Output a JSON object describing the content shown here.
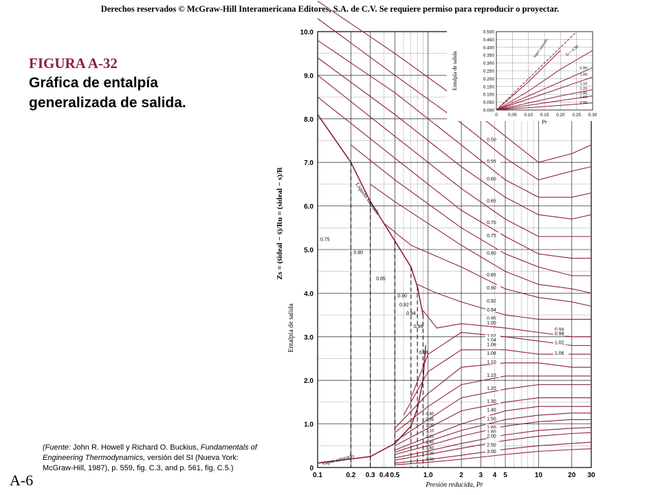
{
  "copyright": "Derechos reservados © McGraw-Hill Interamericana Editores, S.A. de C.V. Se requiere permiso para reproducir o proyectar.",
  "figure": {
    "number": "FIGURA A-32",
    "title": "Gráfica de entalpía generalizada de salida.",
    "page": "A-6",
    "source_prefix": "(Fuente:",
    "source_authors": "John R. Howell y Richard O. Buckius,",
    "source_book": "Fundamentals of Engineering Thermodynamics,",
    "source_rest": "versión del SI (Nueva York: McGraw-Hill, 1987), p. 559, fig. C.3, and",
    "source_rest2": "p. 561, fig. C.5.)"
  },
  "colors": {
    "curve": "#8e1f38",
    "grid": "#000000",
    "dashed": "#000000"
  },
  "chart_data": [
    {
      "type": "line",
      "xlabel": "Presión reducida, Pr",
      "ylabel": "Entalpía de salida",
      "ylabel_formula": "Zs = (s̄ideal − s̄)/Ru = (sideal − s)/R",
      "x_scale": "log",
      "xlim": [
        0.1,
        30
      ],
      "ylim": [
        0,
        10
      ],
      "xticks": [
        "0.1",
        "0.2",
        "0.3",
        "0.4",
        "0.5",
        "1.0",
        "2",
        "3",
        "4",
        "5",
        "10",
        "20",
        "30"
      ],
      "yticks": [
        "0",
        "1.0",
        "2.0",
        "3.0",
        "4.0",
        "5.0",
        "6.0",
        "7.0",
        "8.0",
        "9.0",
        "10.0"
      ],
      "series_label": "Tr",
      "annotations": [
        "Líquido saturado",
        "Vapor saturado"
      ],
      "right_labels": [
        "0.50",
        "0.55",
        "0.60",
        "0.65",
        "0.70",
        "0.75",
        "0.80",
        "0.85",
        "0.90",
        "0.92",
        "0.94",
        "0.95",
        "1.00",
        "1.02",
        "1.04",
        "1.06",
        "1.08",
        "1.10",
        "1.15",
        "1.20",
        "1.30",
        "1.40",
        "1.50",
        "1.60",
        "1.80",
        "2.00",
        "2.50",
        "3.00"
      ],
      "inner_labels": [
        "0.94",
        "0.98",
        "1.02",
        "1.06"
      ],
      "liquid_line_labels": [
        "0.75",
        "0.80",
        "0.85",
        "0.90",
        "0.92",
        "0.94",
        "0.96",
        "0.98"
      ],
      "vapor_line_labels": [
        "0.90",
        "0.95",
        "1.00",
        "1.10",
        "1.20",
        "1.40",
        "1.60",
        "2.00",
        "3.00"
      ],
      "saturated_liquid": {
        "x": [
          0.1,
          0.2,
          0.3,
          0.5,
          0.7,
          0.8,
          0.9
        ],
        "y": [
          8.1,
          7.0,
          6.1,
          5.2,
          4.6,
          4.15,
          3.5
        ]
      },
      "saturated_vapor": {
        "x": [
          0.1,
          0.3,
          0.5,
          0.7,
          0.8,
          0.9,
          0.95
        ],
        "y": [
          0.1,
          0.25,
          0.55,
          0.95,
          1.35,
          2.0,
          2.8
        ]
      },
      "series": [
        {
          "name": "0.50",
          "x": [
            0.1,
            0.5,
            2,
            5,
            10,
            20,
            30
          ],
          "y": [
            10.7,
            9.5,
            8.4,
            7.6,
            7.0,
            7.2,
            7.4
          ]
        },
        {
          "name": "0.55",
          "x": [
            0.1,
            0.5,
            2,
            5,
            10,
            20,
            30
          ],
          "y": [
            10.3,
            9.0,
            7.9,
            7.1,
            6.6,
            6.8,
            6.9
          ]
        },
        {
          "name": "0.60",
          "x": [
            0.1,
            0.5,
            2,
            5,
            10,
            20,
            30
          ],
          "y": [
            9.8,
            8.6,
            7.4,
            6.6,
            6.2,
            6.2,
            6.3
          ]
        },
        {
          "name": "0.65",
          "x": [
            0.1,
            0.5,
            2,
            5,
            10,
            20,
            30
          ],
          "y": [
            9.4,
            8.1,
            6.9,
            6.2,
            5.8,
            5.7,
            5.8
          ]
        },
        {
          "name": "0.70",
          "x": [
            0.1,
            0.5,
            2,
            5,
            10,
            20,
            30
          ],
          "y": [
            9.0,
            7.6,
            6.4,
            5.7,
            5.3,
            5.3,
            5.3
          ]
        },
        {
          "name": "0.75",
          "x": [
            0.1,
            0.5,
            2,
            5,
            10,
            20,
            30
          ],
          "y": [
            8.5,
            7.1,
            5.9,
            5.3,
            4.9,
            4.8,
            4.8
          ]
        },
        {
          "name": "0.80",
          "x": [
            0.2,
            0.5,
            2,
            5,
            10,
            20,
            30
          ],
          "y": [
            7.4,
            6.6,
            5.5,
            4.9,
            4.6,
            4.4,
            4.4
          ]
        },
        {
          "name": "0.85",
          "x": [
            0.3,
            0.5,
            2,
            5,
            10,
            20,
            30
          ],
          "y": [
            6.5,
            6.1,
            5.1,
            4.5,
            4.2,
            4.1,
            4.0
          ]
        },
        {
          "name": "0.90",
          "x": [
            0.4,
            0.7,
            2,
            5,
            10,
            20,
            30
          ],
          "y": [
            5.6,
            5.1,
            4.6,
            4.1,
            3.9,
            3.8,
            3.7
          ]
        },
        {
          "name": "0.95",
          "x": [
            0.8,
            1.2,
            2,
            5,
            10,
            20,
            30
          ],
          "y": [
            4.2,
            4.0,
            3.8,
            3.5,
            3.4,
            3.4,
            3.4
          ]
        },
        {
          "name": "1.00",
          "x": [
            0.9,
            1.2,
            2,
            5,
            10,
            20,
            30
          ],
          "y": [
            3.6,
            3.2,
            3.3,
            3.2,
            3.1,
            3.0,
            3.0
          ]
        },
        {
          "name": "1.02",
          "x": [
            0.7,
            1.0,
            2,
            5,
            10,
            20,
            30
          ],
          "y": [
            1.6,
            2.6,
            3.1,
            3.0,
            2.9,
            2.8,
            2.8
          ]
        },
        {
          "name": "1.06",
          "x": [
            0.6,
            1.0,
            2,
            5,
            10,
            20,
            30
          ],
          "y": [
            1.2,
            2.2,
            2.7,
            2.7,
            2.6,
            2.6,
            2.6
          ]
        },
        {
          "name": "1.10",
          "x": [
            0.5,
            1.0,
            2,
            5,
            10,
            20,
            30
          ],
          "y": [
            0.9,
            1.7,
            2.3,
            2.4,
            2.4,
            2.3,
            2.3
          ]
        },
        {
          "name": "1.15",
          "x": [
            0.5,
            1.0,
            2,
            5,
            10,
            20,
            30
          ],
          "y": [
            0.8,
            1.4,
            1.9,
            2.1,
            2.1,
            2.1,
            2.1
          ]
        },
        {
          "name": "1.20",
          "x": [
            0.5,
            1.0,
            2,
            5,
            10,
            20,
            30
          ],
          "y": [
            0.6,
            1.1,
            1.6,
            1.8,
            1.9,
            1.9,
            1.9
          ]
        },
        {
          "name": "1.30",
          "x": [
            0.5,
            1.0,
            2,
            5,
            10,
            20,
            30
          ],
          "y": [
            0.5,
            0.9,
            1.3,
            1.5,
            1.6,
            1.6,
            1.6
          ]
        },
        {
          "name": "1.40",
          "x": [
            0.5,
            1.0,
            2,
            5,
            10,
            20,
            30
          ],
          "y": [
            0.4,
            0.7,
            1.0,
            1.3,
            1.4,
            1.4,
            1.4
          ]
        },
        {
          "name": "1.50",
          "x": [
            0.5,
            1.0,
            2,
            5,
            10,
            20,
            30
          ],
          "y": [
            0.35,
            0.6,
            0.85,
            1.1,
            1.2,
            1.25,
            1.25
          ]
        },
        {
          "name": "1.60",
          "x": [
            0.5,
            1.0,
            2,
            5,
            10,
            20,
            30
          ],
          "y": [
            0.3,
            0.5,
            0.72,
            0.95,
            1.05,
            1.1,
            1.1
          ]
        },
        {
          "name": "1.80",
          "x": [
            0.5,
            1.0,
            2,
            5,
            10,
            20,
            30
          ],
          "y": [
            0.22,
            0.38,
            0.55,
            0.75,
            0.85,
            0.9,
            0.92
          ]
        },
        {
          "name": "2.00",
          "x": [
            0.5,
            1.0,
            2,
            5,
            10,
            20,
            30
          ],
          "y": [
            0.17,
            0.3,
            0.44,
            0.62,
            0.72,
            0.78,
            0.8
          ]
        },
        {
          "name": "2.50",
          "x": [
            0.5,
            1.0,
            2,
            5,
            10,
            20,
            30
          ],
          "y": [
            0.1,
            0.18,
            0.28,
            0.42,
            0.5,
            0.55,
            0.58
          ]
        },
        {
          "name": "3.00",
          "x": [
            0.5,
            1.0,
            2,
            5,
            10,
            20,
            30
          ],
          "y": [
            0.06,
            0.12,
            0.19,
            0.3,
            0.37,
            0.41,
            0.43
          ]
        }
      ]
    },
    {
      "type": "line",
      "xlabel": "Pr",
      "ylabel": "Entalpía de salida",
      "xlim": [
        0,
        0.3
      ],
      "ylim": [
        0,
        0.5
      ],
      "xticks": [
        "0",
        "0.05",
        "0.10",
        "0.15",
        "0.20",
        "0.25",
        "0.30"
      ],
      "yticks": [
        "0.000",
        "0.050",
        "0.100",
        "0.150",
        "0.200",
        "0.250",
        "0.300",
        "0.350",
        "0.400",
        "0.450",
        "0.500"
      ],
      "annotations": [
        "Vapor saturado",
        "Tr = 0.90"
      ],
      "curve_labels": [
        "0.90",
        "1.00",
        "1.10",
        "1.20",
        "1.40",
        "1.60",
        "2.00"
      ],
      "series": [
        {
          "name": "sat",
          "x": [
            0,
            0.1,
            0.2,
            0.25
          ],
          "y": [
            0,
            0.2,
            0.4,
            0.5
          ]
        },
        {
          "name": "0.90",
          "x": [
            0,
            0.1,
            0.2
          ],
          "y": [
            0,
            0.18,
            0.38
          ]
        },
        {
          "name": "1.00",
          "x": [
            0,
            0.1,
            0.2,
            0.3
          ],
          "y": [
            0,
            0.12,
            0.26,
            0.38
          ]
        },
        {
          "name": "1.10",
          "x": [
            0,
            0.1,
            0.2,
            0.3
          ],
          "y": [
            0,
            0.09,
            0.18,
            0.27
          ]
        },
        {
          "name": "1.20",
          "x": [
            0,
            0.1,
            0.2,
            0.3
          ],
          "y": [
            0,
            0.07,
            0.14,
            0.21
          ]
        },
        {
          "name": "1.40",
          "x": [
            0,
            0.1,
            0.2,
            0.3
          ],
          "y": [
            0,
            0.045,
            0.09,
            0.13
          ]
        },
        {
          "name": "1.60",
          "x": [
            0,
            0.1,
            0.2,
            0.3
          ],
          "y": [
            0,
            0.03,
            0.06,
            0.09
          ]
        },
        {
          "name": "2.00",
          "x": [
            0,
            0.1,
            0.2,
            0.3
          ],
          "y": [
            0,
            0.015,
            0.03,
            0.045
          ]
        }
      ]
    }
  ]
}
